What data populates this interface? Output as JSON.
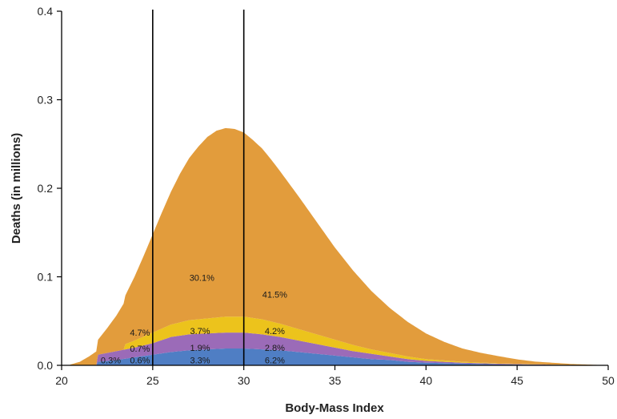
{
  "chart_data": {
    "type": "area",
    "xlabel": "Body-Mass Index",
    "ylabel": "Deaths (in millions)",
    "xlim": [
      20,
      50
    ],
    "ylim": [
      0,
      0.4
    ],
    "x_ticks": [
      "20",
      "25",
      "30",
      "35",
      "40",
      "45",
      "50"
    ],
    "y_ticks": [
      "0.0",
      "0.1",
      "0.2",
      "0.3",
      "0.4"
    ],
    "reference_lines_x": [
      25,
      30
    ],
    "grid": false,
    "legend": "none",
    "series": [
      {
        "color": "#4f7ec4",
        "x": [
          22,
          23,
          24,
          25,
          26,
          27,
          28,
          29,
          30,
          31,
          32,
          33,
          34,
          35,
          36,
          37,
          38,
          39,
          40,
          42,
          44,
          46,
          48,
          50
        ],
        "values": [
          0.004,
          0.006,
          0.009,
          0.012,
          0.015,
          0.017,
          0.018,
          0.019,
          0.019,
          0.018,
          0.017,
          0.015,
          0.013,
          0.011,
          0.009,
          0.007,
          0.006,
          0.004,
          0.003,
          0.002,
          0.001,
          0.0006,
          0.0002,
          0
        ]
      },
      {
        "color": "#9b6bb8",
        "x": [
          22,
          23,
          24,
          25,
          26,
          27,
          28,
          29,
          30,
          31,
          32,
          33,
          34,
          35,
          36,
          37,
          38,
          39,
          40,
          42,
          44,
          46,
          48,
          50
        ],
        "values": [
          0.008,
          0.01,
          0.011,
          0.013,
          0.017,
          0.018,
          0.018,
          0.018,
          0.018,
          0.017,
          0.015,
          0.013,
          0.011,
          0.009,
          0.007,
          0.006,
          0.004,
          0.003,
          0.002,
          0.001,
          0.0008,
          0.0004,
          0.0002,
          0
        ]
      },
      {
        "color": "#ecc31c",
        "x": [
          23.5,
          24,
          25,
          26,
          27,
          28,
          29,
          30,
          31,
          32,
          33,
          34,
          35,
          36,
          37,
          38,
          39,
          40,
          42,
          44,
          46,
          48,
          50
        ],
        "values": [
          0.006,
          0.008,
          0.012,
          0.014,
          0.016,
          0.017,
          0.018,
          0.018,
          0.017,
          0.015,
          0.013,
          0.011,
          0.009,
          0.007,
          0.005,
          0.004,
          0.003,
          0.002,
          0.001,
          0.0005,
          0.0002,
          0.0001,
          0
        ]
      },
      {
        "color": "#e29c3c",
        "x": [
          20.5,
          21,
          21.5,
          22,
          22.5,
          23,
          23.5,
          24,
          24.5,
          25,
          25.5,
          26,
          26.5,
          27,
          27.5,
          28,
          28.5,
          29,
          29.5,
          30,
          30.5,
          31,
          31.5,
          32,
          33,
          34,
          35,
          36,
          37,
          38,
          39,
          40,
          41,
          42,
          43,
          44,
          45,
          46,
          47,
          48,
          49,
          50
        ],
        "values": [
          0.001,
          0.004,
          0.01,
          0.017,
          0.028,
          0.04,
          0.055,
          0.072,
          0.091,
          0.111,
          0.131,
          0.15,
          0.168,
          0.183,
          0.195,
          0.205,
          0.211,
          0.213,
          0.212,
          0.208,
          0.201,
          0.193,
          0.183,
          0.172,
          0.15,
          0.127,
          0.104,
          0.084,
          0.066,
          0.051,
          0.039,
          0.029,
          0.021,
          0.015,
          0.011,
          0.008,
          0.005,
          0.003,
          0.002,
          0.001,
          0.0005,
          0
        ]
      }
    ],
    "annotations": [
      {
        "text": "30.1%",
        "x": 27.7,
        "y": 0.099
      },
      {
        "text": "41.5%",
        "x": 31.7,
        "y": 0.08
      },
      {
        "text": "4.7%",
        "x": 24.3,
        "y": 0.037
      },
      {
        "text": "3.7%",
        "x": 27.6,
        "y": 0.039
      },
      {
        "text": "4.2%",
        "x": 31.7,
        "y": 0.039
      },
      {
        "text": "0.7%",
        "x": 24.3,
        "y": 0.019
      },
      {
        "text": "1.9%",
        "x": 27.6,
        "y": 0.02
      },
      {
        "text": "2.8%",
        "x": 31.7,
        "y": 0.02
      },
      {
        "text": "0.3%",
        "x": 22.7,
        "y": 0.006
      },
      {
        "text": "0.6%",
        "x": 24.3,
        "y": 0.006
      },
      {
        "text": "3.3%",
        "x": 27.6,
        "y": 0.006
      },
      {
        "text": "6.2%",
        "x": 31.7,
        "y": 0.006
      }
    ]
  }
}
